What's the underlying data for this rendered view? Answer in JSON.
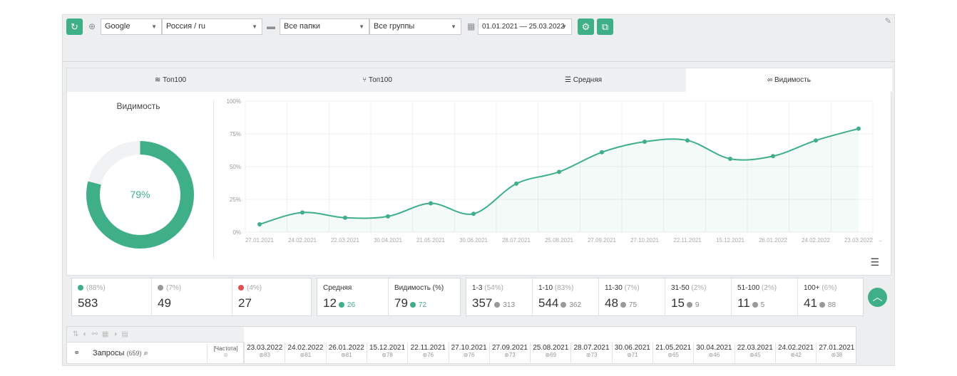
{
  "toolbar": {
    "search_engine": "Google",
    "region": "Россия / ru",
    "folders": "Все папки",
    "groups": "Все группы",
    "date_range": "01.01.2021 — 25.03.2022"
  },
  "tabs": [
    {
      "label": "Топ100",
      "icon": "layers-icon"
    },
    {
      "label": "Топ100",
      "icon": "share-icon"
    },
    {
      "label": "Средняя",
      "icon": "list-icon"
    },
    {
      "label": "Видимость",
      "icon": "glasses-icon"
    }
  ],
  "donut": {
    "title": "Видимость",
    "value_label": "79%",
    "fraction": 0.79,
    "color": "#3eaf87"
  },
  "chart_data": {
    "type": "area",
    "x": [
      "27.01.2021",
      "24.02.2021",
      "22.03.2021",
      "30.04.2021",
      "21.05.2021",
      "30.06.2021",
      "28.07.2021",
      "25.08.2021",
      "27.09.2021",
      "27.10.2021",
      "22.11.2021",
      "15.12.2021",
      "26.01.2022",
      "24.02.2022",
      "23.03.2022"
    ],
    "values": [
      6,
      15,
      11,
      12,
      22,
      14,
      37,
      46,
      61,
      69,
      70,
      56,
      58,
      70,
      79
    ],
    "yticks": [
      "0%",
      "25%",
      "50%",
      "75%",
      "100%"
    ],
    "ylim": [
      0,
      100
    ],
    "grid": true,
    "color": "#3eaf87"
  },
  "stats1": [
    {
      "pct": "(88%)",
      "value": "583",
      "color": "#3eaf87"
    },
    {
      "pct": "(7%)",
      "value": "49",
      "color": "#999999"
    },
    {
      "pct": "(4%)",
      "value": "27",
      "color": "#e05050"
    }
  ],
  "stats2": [
    {
      "label": "Средняя",
      "value": "12",
      "delta": "26"
    },
    {
      "label": "Видимость (%)",
      "value": "79",
      "delta": "72"
    }
  ],
  "stats3": [
    {
      "label": "1-3",
      "pct": "(54%)",
      "value": "357",
      "delta": "313"
    },
    {
      "label": "1-10",
      "pct": "(83%)",
      "value": "544",
      "delta": "362"
    },
    {
      "label": "11-30",
      "pct": "(7%)",
      "value": "48",
      "delta": "75"
    },
    {
      "label": "31-50",
      "pct": "(2%)",
      "value": "15",
      "delta": "9"
    },
    {
      "label": "51-100",
      "pct": "(2%)",
      "value": "11",
      "delta": "5"
    },
    {
      "label": "100+",
      "pct": "(6%)",
      "value": "41",
      "delta": "88"
    }
  ],
  "table": {
    "queries_label": "Запросы",
    "queries_count": "(659)",
    "freq_label": "[Частота]",
    "dates": [
      {
        "d": "23.03.2022",
        "n": "83"
      },
      {
        "d": "24.02.2022",
        "n": "81"
      },
      {
        "d": "26.01.2022",
        "n": "81"
      },
      {
        "d": "15.12.2021",
        "n": "78"
      },
      {
        "d": "22.11.2021",
        "n": "76"
      },
      {
        "d": "27.10.2021",
        "n": "76"
      },
      {
        "d": "27.09.2021",
        "n": "73"
      },
      {
        "d": "25.08.2021",
        "n": "69"
      },
      {
        "d": "28.07.2021",
        "n": "73"
      },
      {
        "d": "30.06.2021",
        "n": "71"
      },
      {
        "d": "21.05.2021",
        "n": "65"
      },
      {
        "d": "30.04.2021",
        "n": "46"
      },
      {
        "d": "22.03.2021",
        "n": "45"
      },
      {
        "d": "24.02.2021",
        "n": "42"
      },
      {
        "d": "27.01.2021",
        "n": "38"
      }
    ]
  }
}
